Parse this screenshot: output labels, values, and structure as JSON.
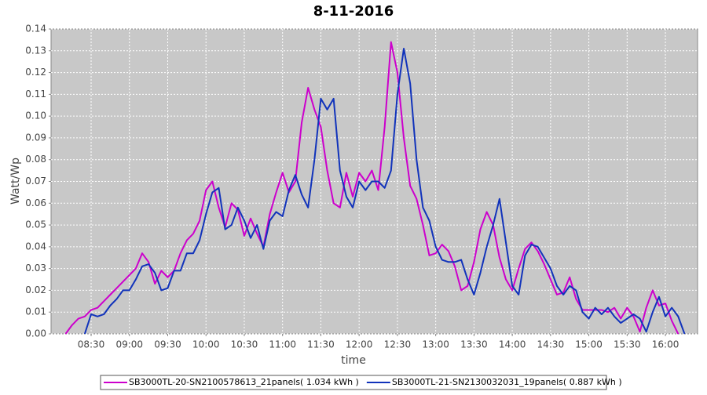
{
  "chart_data": {
    "type": "line",
    "title": "8-11-2016",
    "xlabel": "time",
    "ylabel": "Watt/Wp",
    "x": [
      490,
      495,
      500,
      505,
      510,
      515,
      520,
      525,
      530,
      535,
      540,
      545,
      550,
      555,
      560,
      565,
      570,
      575,
      580,
      585,
      590,
      595,
      600,
      605,
      610,
      615,
      620,
      625,
      630,
      635,
      640,
      645,
      650,
      655,
      660,
      665,
      670,
      675,
      680,
      685,
      690,
      695,
      700,
      705,
      710,
      715,
      720,
      725,
      730,
      735,
      740,
      745,
      750,
      755,
      760,
      765,
      770,
      775,
      780,
      785,
      790,
      795,
      800,
      805,
      810,
      815,
      820,
      825,
      830,
      835,
      840,
      845,
      850,
      855,
      860,
      865,
      870,
      875,
      880,
      885,
      890,
      895,
      900,
      905,
      910,
      915,
      920,
      925,
      930,
      935,
      940,
      945,
      950,
      955,
      960,
      965,
      970,
      975
    ],
    "series": [
      {
        "name": "SB3000TL-20-SN2100578613_21panels( 1.034 kWh )",
        "color": "#cc00cc",
        "values": [
          0,
          0.004,
          0.007,
          0.008,
          0.011,
          0.012,
          0.015,
          0.018,
          0.021,
          0.024,
          0.027,
          0.03,
          0.037,
          0.033,
          0.023,
          0.029,
          0.026,
          0.029,
          0.037,
          0.043,
          0.046,
          0.052,
          0.066,
          0.07,
          0.058,
          0.049,
          0.06,
          0.057,
          0.045,
          0.053,
          0.046,
          0.04,
          0.055,
          0.065,
          0.074,
          0.065,
          0.07,
          0.097,
          0.113,
          0.103,
          0.095,
          0.075,
          0.06,
          0.058,
          0.074,
          0.063,
          0.074,
          0.07,
          0.075,
          0.066,
          0.095,
          0.134,
          0.12,
          0.09,
          0.068,
          0.062,
          0.05,
          0.036,
          0.037,
          0.041,
          0.038,
          0.031,
          0.02,
          0.022,
          0.033,
          0.048,
          0.056,
          0.05,
          0.035,
          0.025,
          0.02,
          0.03,
          0.039,
          0.042,
          0.038,
          0.032,
          0.025,
          0.018,
          0.019,
          0.026,
          0.016,
          0.011,
          0.011,
          0.011,
          0.011,
          0.01,
          0.012,
          0.007,
          0.012,
          0.008,
          0.001,
          0.012,
          0.02,
          0.013,
          0.014,
          0.006,
          0,
          null
        ]
      },
      {
        "name": "SB3000TL-21-SN2130032031_19panels( 0.887 kWh )",
        "color": "#1133bb",
        "values": [
          null,
          null,
          null,
          0,
          0.009,
          0.008,
          0.009,
          0.013,
          0.016,
          0.02,
          0.02,
          0.025,
          0.031,
          0.032,
          0.028,
          0.02,
          0.021,
          0.029,
          0.029,
          0.037,
          0.037,
          0.043,
          0.055,
          0.065,
          0.067,
          0.048,
          0.05,
          0.058,
          0.052,
          0.044,
          0.05,
          0.039,
          0.052,
          0.056,
          0.054,
          0.066,
          0.073,
          0.064,
          0.058,
          0.08,
          0.108,
          0.103,
          0.108,
          0.075,
          0.063,
          0.058,
          0.07,
          0.066,
          0.07,
          0.07,
          0.067,
          0.075,
          0.11,
          0.131,
          0.115,
          0.08,
          0.058,
          0.052,
          0.04,
          0.034,
          0.033,
          0.033,
          0.034,
          0.025,
          0.018,
          0.028,
          0.04,
          0.05,
          0.062,
          0.042,
          0.022,
          0.018,
          0.036,
          0.041,
          0.04,
          0.035,
          0.03,
          0.022,
          0.018,
          0.022,
          0.02,
          0.01,
          0.007,
          0.012,
          0.009,
          0.012,
          0.008,
          0.005,
          0.007,
          0.009,
          0.007,
          0.001,
          0.01,
          0.017,
          0.008,
          0.012,
          0.008,
          0
        ]
      }
    ],
    "xlim": [
      478.6,
      985.2
    ],
    "xticks": [
      {
        "value": 510,
        "label": "08:30"
      },
      {
        "value": 540,
        "label": "09:00"
      },
      {
        "value": 570,
        "label": "09:30"
      },
      {
        "value": 600,
        "label": "10:00"
      },
      {
        "value": 630,
        "label": "10:30"
      },
      {
        "value": 660,
        "label": "11:00"
      },
      {
        "value": 690,
        "label": "11:30"
      },
      {
        "value": 720,
        "label": "12:00"
      },
      {
        "value": 750,
        "label": "12:30"
      },
      {
        "value": 780,
        "label": "13:00"
      },
      {
        "value": 810,
        "label": "13:30"
      },
      {
        "value": 840,
        "label": "14:00"
      },
      {
        "value": 870,
        "label": "14:30"
      },
      {
        "value": 900,
        "label": "15:00"
      },
      {
        "value": 930,
        "label": "15:30"
      },
      {
        "value": 960,
        "label": "16:00"
      }
    ],
    "ylim": [
      0,
      0.14
    ],
    "yticks": [
      {
        "value": 0,
        "label": "0.00"
      },
      {
        "value": 0.01,
        "label": "0.01"
      },
      {
        "value": 0.02,
        "label": "0.02"
      },
      {
        "value": 0.03,
        "label": "0.03"
      },
      {
        "value": 0.04,
        "label": "0.04"
      },
      {
        "value": 0.05,
        "label": "0.05"
      },
      {
        "value": 0.06,
        "label": "0.06"
      },
      {
        "value": 0.07,
        "label": "0.07"
      },
      {
        "value": 0.08,
        "label": "0.08"
      },
      {
        "value": 0.09,
        "label": "0.09"
      },
      {
        "value": 0.1,
        "label": "0.10"
      },
      {
        "value": 0.11,
        "label": "0.11"
      },
      {
        "value": 0.12,
        "label": "0.12"
      },
      {
        "value": 0.13,
        "label": "0.13"
      },
      {
        "value": 0.14,
        "label": "0.14"
      }
    ],
    "grid": true,
    "legend": "bottom"
  }
}
